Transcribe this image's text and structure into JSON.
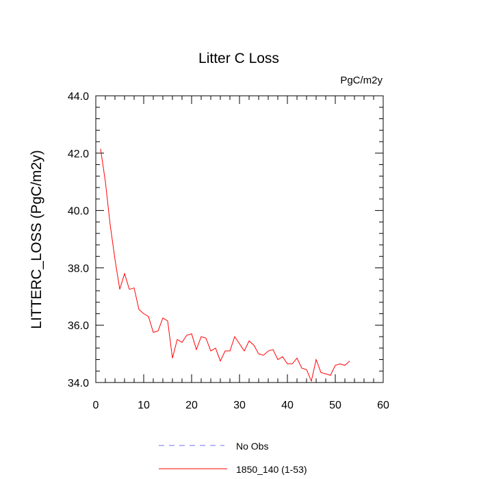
{
  "chart_data": {
    "type": "line",
    "title": "Litter C Loss",
    "units": "PgC/m2y",
    "ylabel": "LITTERC_LOSS  (PgC/m2y)",
    "xlabel": "",
    "xlim": [
      0,
      60
    ],
    "ylim": [
      34.0,
      44.0
    ],
    "xticks": [
      0,
      10,
      20,
      30,
      40,
      50,
      60
    ],
    "yticks": [
      34.0,
      36.0,
      38.0,
      40.0,
      42.0,
      44.0
    ],
    "xtick_labels": [
      "0",
      "10",
      "20",
      "30",
      "40",
      "50",
      "60"
    ],
    "ytick_labels": [
      "34.0",
      "36.0",
      "38.0",
      "40.0",
      "42.0",
      "44.0"
    ],
    "grid": false,
    "legend_position": "bottom",
    "series": [
      {
        "name": "No Obs",
        "color": "#6f6ff0",
        "dashed": true,
        "x": [],
        "y": []
      },
      {
        "name": "1850_140 (1-53)",
        "color": "#ff0000",
        "dashed": false,
        "x": [
          1,
          2,
          3,
          4,
          5,
          6,
          7,
          8,
          9,
          10,
          11,
          12,
          13,
          14,
          15,
          16,
          17,
          18,
          19,
          20,
          21,
          22,
          23,
          24,
          25,
          26,
          27,
          28,
          29,
          30,
          31,
          32,
          33,
          34,
          35,
          36,
          37,
          38,
          39,
          40,
          41,
          42,
          43,
          44,
          45,
          46,
          47,
          48,
          49,
          50,
          51,
          52,
          53
        ],
        "y": [
          42.15,
          41.0,
          39.5,
          38.3,
          37.25,
          37.8,
          37.25,
          37.3,
          36.55,
          36.4,
          36.3,
          35.75,
          35.8,
          36.25,
          36.15,
          34.85,
          35.5,
          35.4,
          35.65,
          35.7,
          35.15,
          35.6,
          35.55,
          35.1,
          35.2,
          34.75,
          35.1,
          35.1,
          35.6,
          35.35,
          35.1,
          35.45,
          35.3,
          35.0,
          34.95,
          35.1,
          35.15,
          34.8,
          34.9,
          34.65,
          34.65,
          34.85,
          34.5,
          34.45,
          34.05,
          34.8,
          34.35,
          34.3,
          34.25,
          34.6,
          34.65,
          34.6,
          34.75
        ]
      }
    ]
  }
}
